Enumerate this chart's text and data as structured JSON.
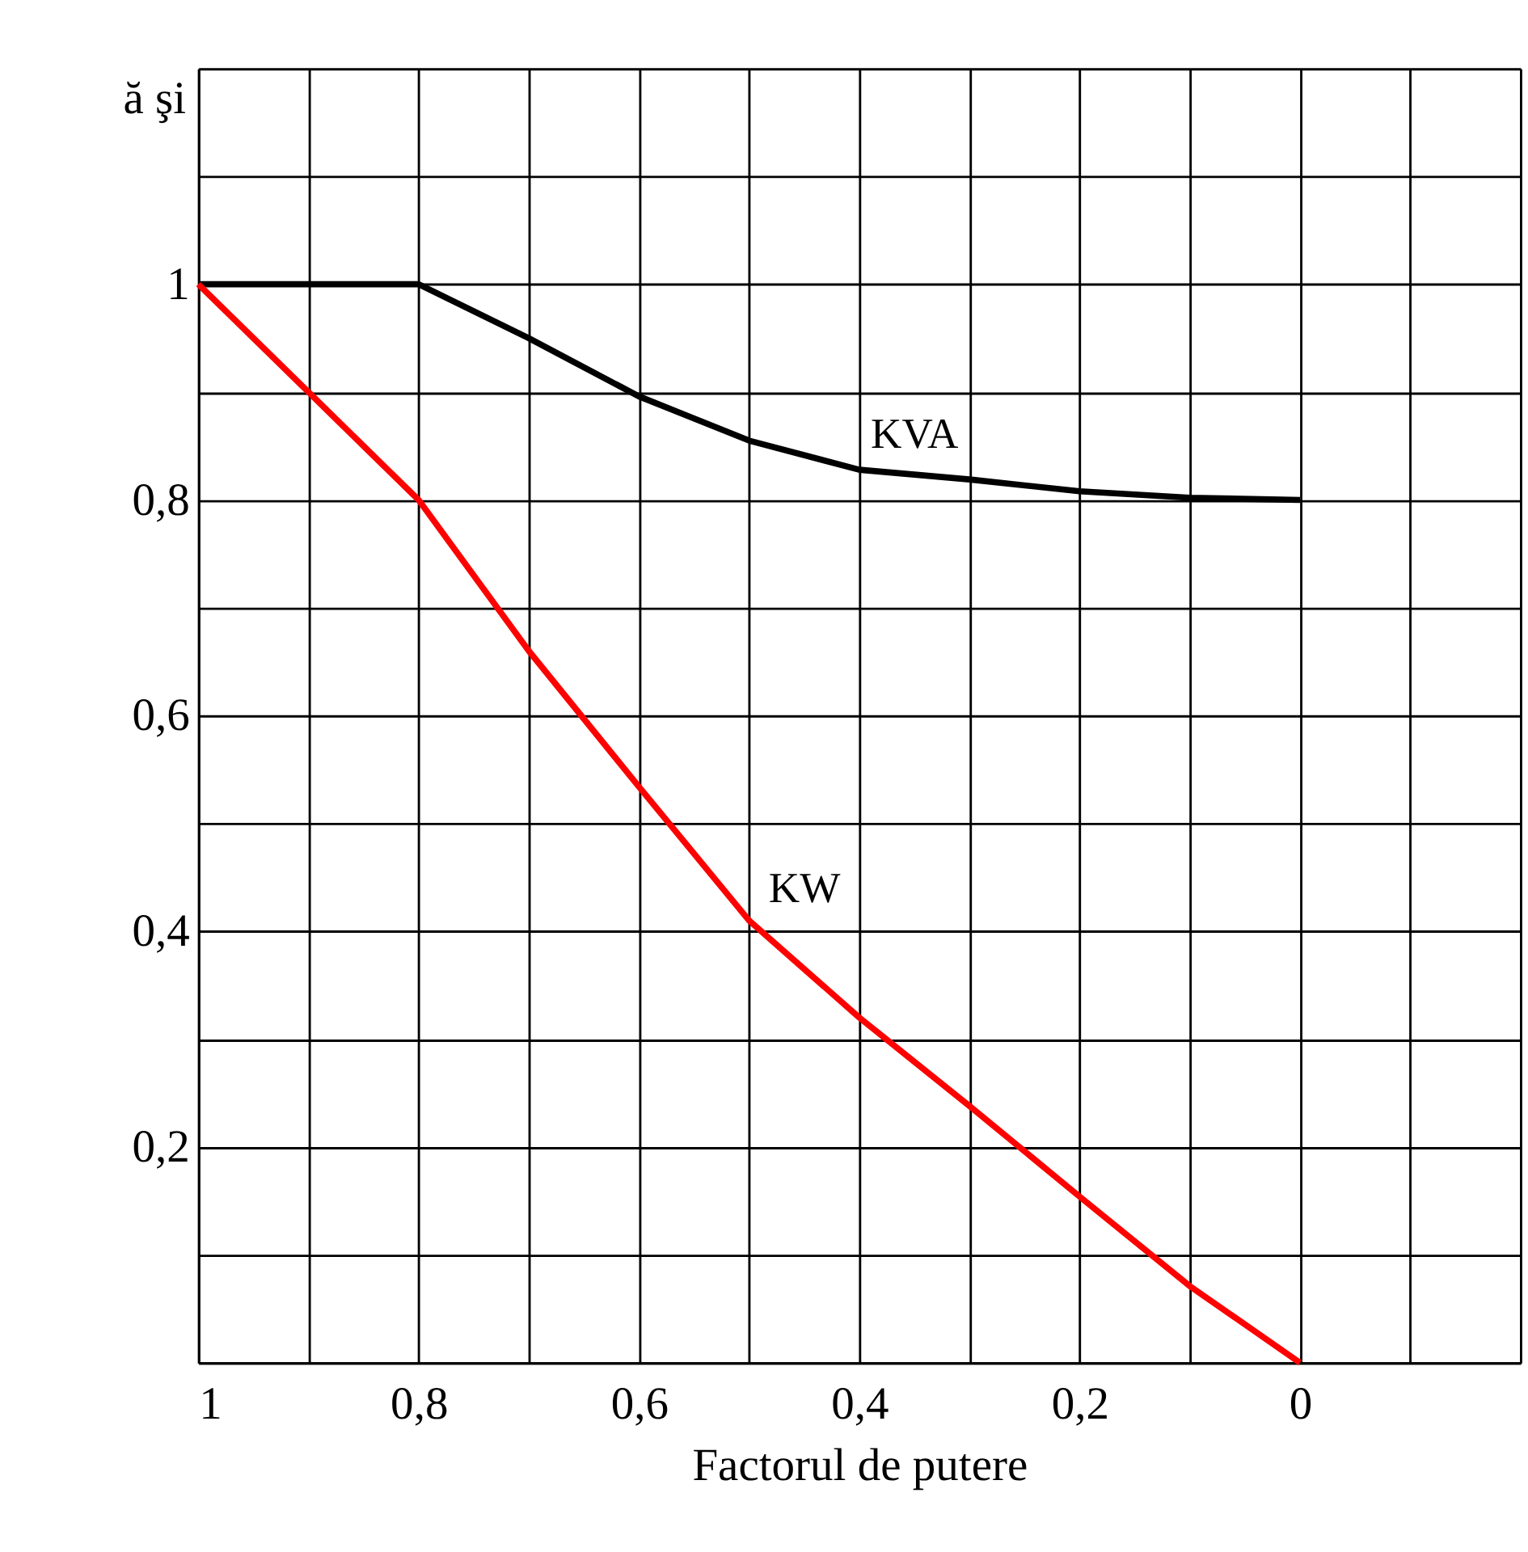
{
  "chart_data": {
    "type": "line",
    "xlabel": "Factorul de putere",
    "ylabel": "ă şi",
    "x": [
      1,
      0.9,
      0.8,
      0.7,
      0.6,
      0.5,
      0.4,
      0.3,
      0.2,
      0.1,
      0
    ],
    "series": [
      {
        "name": "KVA",
        "color": "#000000",
        "values": [
          1,
          1,
          1,
          0.95,
          0.896,
          0.855,
          0.828,
          0.819,
          0.808,
          0.802,
          0.8
        ]
      },
      {
        "name": "KW",
        "color": "#ff0000",
        "values": [
          1,
          0.9,
          0.8,
          0.66,
          0.534,
          0.41,
          0.32,
          0.238,
          0.154,
          0.071,
          0
        ]
      }
    ],
    "xlim": [
      1,
      -0.2
    ],
    "ylim": [
      0,
      1.2
    ],
    "xticks": [
      1,
      {
        "value": 0.9,
        "label": null
      },
      {
        "value": 0.8,
        "label": "0,8"
      },
      {
        "value": 0.7,
        "label": null
      },
      {
        "value": 0.6,
        "label": "0,6"
      },
      {
        "value": 0.5,
        "label": null
      },
      {
        "value": 0.4,
        "label": "0,4"
      },
      {
        "value": 0.3,
        "label": null
      },
      {
        "value": 0.2,
        "label": "0,2"
      },
      {
        "value": 0.1,
        "label": null
      },
      0,
      {
        "value": -0.1,
        "label": null
      },
      {
        "value": -0.2,
        "label": null
      }
    ],
    "yticks": [
      {
        "value": 0,
        "label": null
      },
      {
        "value": 0.1,
        "label": null
      },
      {
        "value": 0.2,
        "label": "0,2"
      },
      {
        "value": 0.3,
        "label": null
      },
      {
        "value": 0.4,
        "label": "0,4"
      },
      {
        "value": 0.5,
        "label": null
      },
      {
        "value": 0.6,
        "label": "0,6"
      },
      {
        "value": 0.7,
        "label": null
      },
      {
        "value": 0.8,
        "label": "0,8"
      },
      {
        "value": 0.9,
        "label": null
      },
      1,
      {
        "value": 1.1,
        "label": null
      },
      {
        "value": 1.2,
        "label": null
      }
    ],
    "grid": true,
    "marker": "none",
    "line_style": "solid"
  }
}
